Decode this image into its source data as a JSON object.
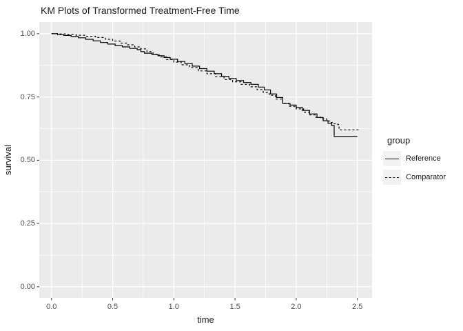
{
  "legend": {
    "title": "group",
    "items": [
      {
        "label": "Reference",
        "linetype": "solid"
      },
      {
        "label": "Comparator",
        "linetype": "dashed"
      }
    ]
  },
  "chart_data": {
    "type": "line",
    "subtype": "kaplan-meier-step",
    "title": "KM Plots of Transformed Treatment-Free Time",
    "xlabel": "time",
    "ylabel": "survival",
    "xlim": [
      -0.1,
      2.62
    ],
    "ylim": [
      -0.044,
      1.046
    ],
    "grid": true,
    "legend_position": "right",
    "x_ticks": {
      "values": [
        0,
        0.5,
        1.0,
        1.5,
        2.0,
        2.5
      ],
      "labels": [
        "0.0",
        "0.5",
        "1.0",
        "1.5",
        "2.0",
        "2.5"
      ]
    },
    "y_ticks": {
      "values": [
        0,
        0.25,
        0.5,
        0.75,
        1.0
      ],
      "labels": [
        "0.00",
        "0.25",
        "0.50",
        "0.75",
        "1.00"
      ]
    },
    "x_minor": [
      0.25,
      0.75,
      1.25,
      1.75,
      2.25
    ],
    "y_minor": [
      0.125,
      0.375,
      0.625,
      0.875
    ],
    "colors": {
      "panel_bg": "#EBEBEB",
      "grid": "#FFFFFF",
      "line": "#000000",
      "tick_mark": "#333333",
      "tick_text": "#4D4D4D",
      "legend_key_bg": "#F2F2F2"
    },
    "series": [
      {
        "name": "Reference",
        "linetype": "solid",
        "points": [
          [
            0.0,
            1.0
          ],
          [
            0.05,
            0.996
          ],
          [
            0.1,
            0.993
          ],
          [
            0.16,
            0.989
          ],
          [
            0.22,
            0.984
          ],
          [
            0.28,
            0.978
          ],
          [
            0.34,
            0.972
          ],
          [
            0.4,
            0.965
          ],
          [
            0.46,
            0.959
          ],
          [
            0.52,
            0.953
          ],
          [
            0.58,
            0.948
          ],
          [
            0.64,
            0.942
          ],
          [
            0.7,
            0.937
          ],
          [
            0.73,
            0.929
          ],
          [
            0.76,
            0.923
          ],
          [
            0.82,
            0.918
          ],
          [
            0.87,
            0.913
          ],
          [
            0.92,
            0.906
          ],
          [
            0.97,
            0.899
          ],
          [
            1.03,
            0.89
          ],
          [
            1.09,
            0.882
          ],
          [
            1.15,
            0.872
          ],
          [
            1.21,
            0.862
          ],
          [
            1.27,
            0.852
          ],
          [
            1.33,
            0.842
          ],
          [
            1.39,
            0.831
          ],
          [
            1.45,
            0.823
          ],
          [
            1.51,
            0.815
          ],
          [
            1.57,
            0.807
          ],
          [
            1.63,
            0.8
          ],
          [
            1.69,
            0.789
          ],
          [
            1.74,
            0.778
          ],
          [
            1.79,
            0.762
          ],
          [
            1.84,
            0.748
          ],
          [
            1.89,
            0.724
          ],
          [
            1.95,
            0.718
          ],
          [
            2.0,
            0.709
          ],
          [
            2.05,
            0.697
          ],
          [
            2.11,
            0.683
          ],
          [
            2.17,
            0.669
          ],
          [
            2.22,
            0.656
          ],
          [
            2.26,
            0.646
          ],
          [
            2.29,
            0.637
          ],
          [
            2.31,
            0.594
          ],
          [
            2.5,
            0.594
          ]
        ]
      },
      {
        "name": "Comparator",
        "linetype": "dashed",
        "points": [
          [
            0.0,
            1.0
          ],
          [
            0.06,
            0.999
          ],
          [
            0.12,
            0.997
          ],
          [
            0.2,
            0.994
          ],
          [
            0.28,
            0.99
          ],
          [
            0.36,
            0.985
          ],
          [
            0.44,
            0.978
          ],
          [
            0.5,
            0.971
          ],
          [
            0.56,
            0.963
          ],
          [
            0.62,
            0.956
          ],
          [
            0.68,
            0.948
          ],
          [
            0.73,
            0.94
          ],
          [
            0.78,
            0.929
          ],
          [
            0.83,
            0.919
          ],
          [
            0.88,
            0.908
          ],
          [
            0.94,
            0.898
          ],
          [
            1.0,
            0.888
          ],
          [
            1.06,
            0.877
          ],
          [
            1.13,
            0.866
          ],
          [
            1.2,
            0.853
          ],
          [
            1.27,
            0.842
          ],
          [
            1.34,
            0.83
          ],
          [
            1.41,
            0.819
          ],
          [
            1.48,
            0.81
          ],
          [
            1.55,
            0.8
          ],
          [
            1.62,
            0.79
          ],
          [
            1.68,
            0.779
          ],
          [
            1.73,
            0.768
          ],
          [
            1.78,
            0.757
          ],
          [
            1.83,
            0.742
          ],
          [
            1.89,
            0.725
          ],
          [
            1.94,
            0.713
          ],
          [
            2.0,
            0.703
          ],
          [
            2.06,
            0.69
          ],
          [
            2.11,
            0.679
          ],
          [
            2.16,
            0.67
          ],
          [
            2.2,
            0.664
          ],
          [
            2.25,
            0.655
          ],
          [
            2.28,
            0.649
          ],
          [
            2.3,
            0.644
          ],
          [
            2.34,
            0.641
          ],
          [
            2.35,
            0.62
          ],
          [
            2.51,
            0.62
          ]
        ]
      }
    ]
  }
}
